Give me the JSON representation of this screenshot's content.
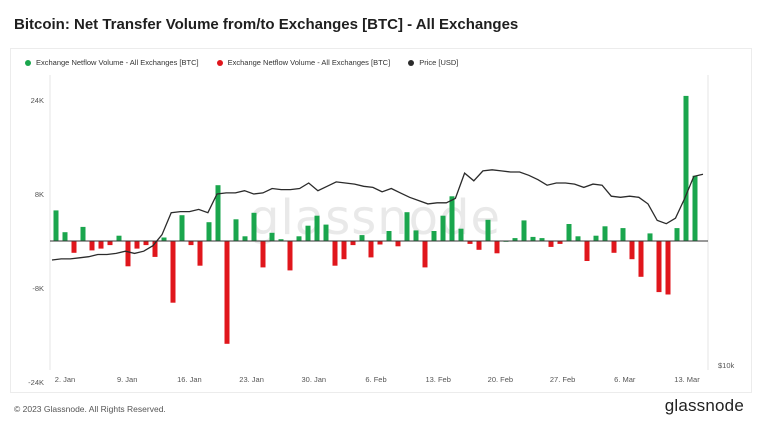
{
  "title": "Bitcoin: Net Transfer Volume from/to Exchanges [BTC] - All Exchanges",
  "footer": {
    "copyright": "© 2023 Glassnode. All Rights Reserved.",
    "logo": "glassnode",
    "watermark": "glassnode"
  },
  "colors": {
    "green": "#1aa64d",
    "red": "#e0161c",
    "price": "#2b2b2b"
  },
  "chart_data": {
    "type": "bar",
    "legend_position": "top-left",
    "series": [
      {
        "name": "Exchange Netflow Volume - All Exchanges [BTC]",
        "color": "#1aa64d",
        "kind": "bar-positive"
      },
      {
        "name": "Exchange Netflow Volume - All Exchanges [BTC]",
        "color": "#e0161c",
        "kind": "bar-negative"
      },
      {
        "name": "Price [USD]",
        "color": "#2b2b2b",
        "kind": "line"
      }
    ],
    "y_ticks": [
      "24K",
      "8K",
      "-8K",
      "-24K"
    ],
    "y_tick_values": [
      24000,
      8000,
      -8000,
      -24000
    ],
    "ylim": [
      -24000,
      24000
    ],
    "right_axis_label": "$10k",
    "x_tick_labels": [
      "2. Jan",
      "9. Jan",
      "16. Jan",
      "23. Jan",
      "30. Jan",
      "6. Feb",
      "13. Feb",
      "20. Feb",
      "27. Feb",
      "6. Mar",
      "13. Mar"
    ],
    "netflow": [
      5200,
      1500,
      -2000,
      2400,
      -1600,
      -1300,
      -700,
      900,
      -4300,
      -1300,
      -700,
      -2700,
      600,
      -10500,
      4400,
      -700,
      -4200,
      3200,
      9500,
      -17500,
      3700,
      800,
      4800,
      -4500,
      1400,
      300,
      -5000,
      800,
      2600,
      4300,
      2800,
      -4200,
      -3100,
      -700,
      1000,
      -2800,
      -600,
      1700,
      -900,
      4900,
      1800,
      -4500,
      1700,
      4300,
      7600,
      2100,
      -500,
      -1500,
      3600,
      -2100,
      0,
      500,
      3500,
      700,
      500,
      -1000,
      -500,
      2900,
      800,
      -3400,
      900,
      2500,
      -2000,
      2200,
      -3100,
      -6100,
      1300,
      -8700,
      -9100,
      2200,
      24700,
      11100
    ],
    "price_usd_k": [
      16.6,
      16.7,
      16.7,
      16.8,
      16.9,
      17.1,
      17.1,
      17.2,
      17.4,
      17.2,
      17.4,
      17.9,
      18.9,
      20.9,
      21.0,
      21.0,
      21.2,
      20.9,
      22.6,
      22.7,
      22.7,
      22.9,
      22.6,
      22.7,
      23.1,
      23.0,
      23.0,
      23.1,
      23.6,
      22.9,
      23.3,
      23.7,
      23.6,
      23.5,
      23.3,
      23.2,
      22.8,
      23.1,
      22.7,
      22.3,
      22.0,
      21.7,
      21.8,
      21.8,
      22.2,
      24.5,
      23.8,
      24.7,
      24.8,
      24.7,
      24.6,
      24.6,
      24.3,
      23.9,
      23.4,
      23.6,
      23.6,
      23.5,
      23.2,
      23.5,
      23.4,
      22.4,
      22.3,
      22.4,
      22.3,
      21.7,
      20.2,
      19.9,
      20.4,
      22.2,
      24.2,
      24.4
    ]
  }
}
